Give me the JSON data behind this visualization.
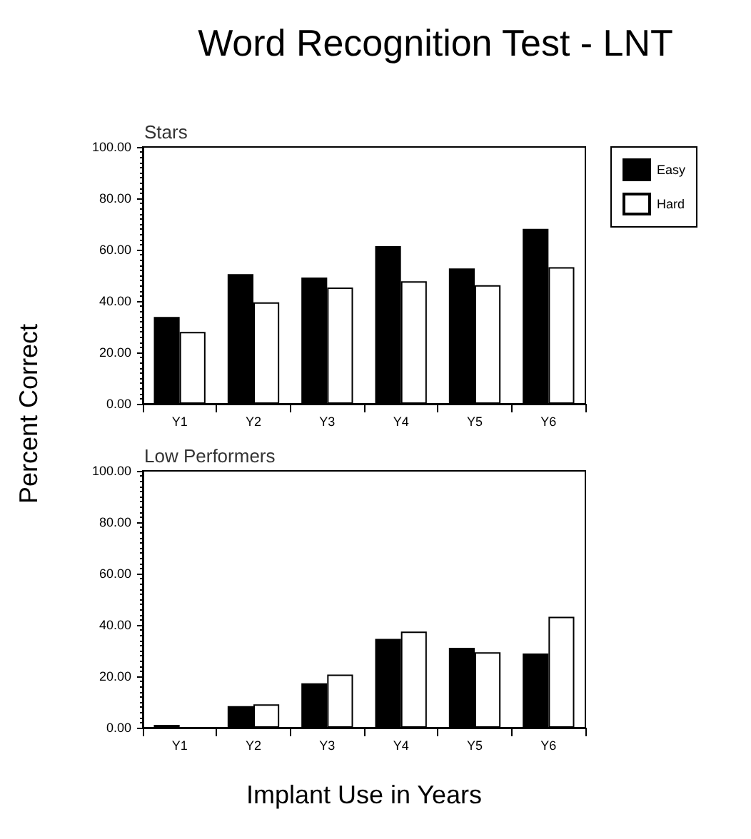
{
  "chart_data": [
    {
      "type": "bar",
      "title": "Word Recognition Test - LNT",
      "subtitle": "Stars",
      "ylabel": "Percent Correct",
      "categories": [
        "Y1",
        "Y2",
        "Y3",
        "Y4",
        "Y5",
        "Y6"
      ],
      "series": [
        {
          "name": "Easy",
          "color": "#000000",
          "values": [
            33.8,
            50.5,
            49.2,
            61.4,
            52.7,
            68.1
          ]
        },
        {
          "name": "Hard",
          "color": "#ffffff",
          "values": [
            28,
            39.5,
            45.3,
            47.7,
            46.2,
            53.2
          ]
        }
      ],
      "ylim": [
        0,
        100
      ],
      "yticks": [
        {
          "value": 0,
          "label": "0.00"
        },
        {
          "value": 20,
          "label": "20.00"
        },
        {
          "value": 40,
          "label": "40.00"
        },
        {
          "value": 60,
          "label": "60.00"
        },
        {
          "value": 80,
          "label": "80.00"
        },
        {
          "value": 100,
          "label": "100.00"
        }
      ],
      "grid": false,
      "legend": "top right"
    },
    {
      "type": "bar",
      "subtitle": "Low Performers",
      "xlabel": "Implant Use in Years",
      "categories": [
        "Y1",
        "Y2",
        "Y3",
        "Y4",
        "Y5",
        "Y6"
      ],
      "series": [
        {
          "color": "#000000",
          "values": [
            1.1,
            8.4,
            17.3,
            34.6,
            31.1,
            28.9
          ]
        },
        {
          "color": "#ffffff",
          "values": [
            null,
            9.1,
            20.7,
            37.4,
            29.4,
            43.2
          ]
        }
      ],
      "ylim": [
        0,
        100
      ],
      "yticks": [
        {
          "value": 0,
          "label": "0.00"
        },
        {
          "value": 20,
          "label": "20.00"
        },
        {
          "value": 40,
          "label": "40.00"
        },
        {
          "value": 60,
          "label": "60.00"
        },
        {
          "value": 80,
          "label": "80.00"
        },
        {
          "value": 100,
          "label": "100.00"
        }
      ],
      "grid": false,
      "legend": false
    }
  ]
}
